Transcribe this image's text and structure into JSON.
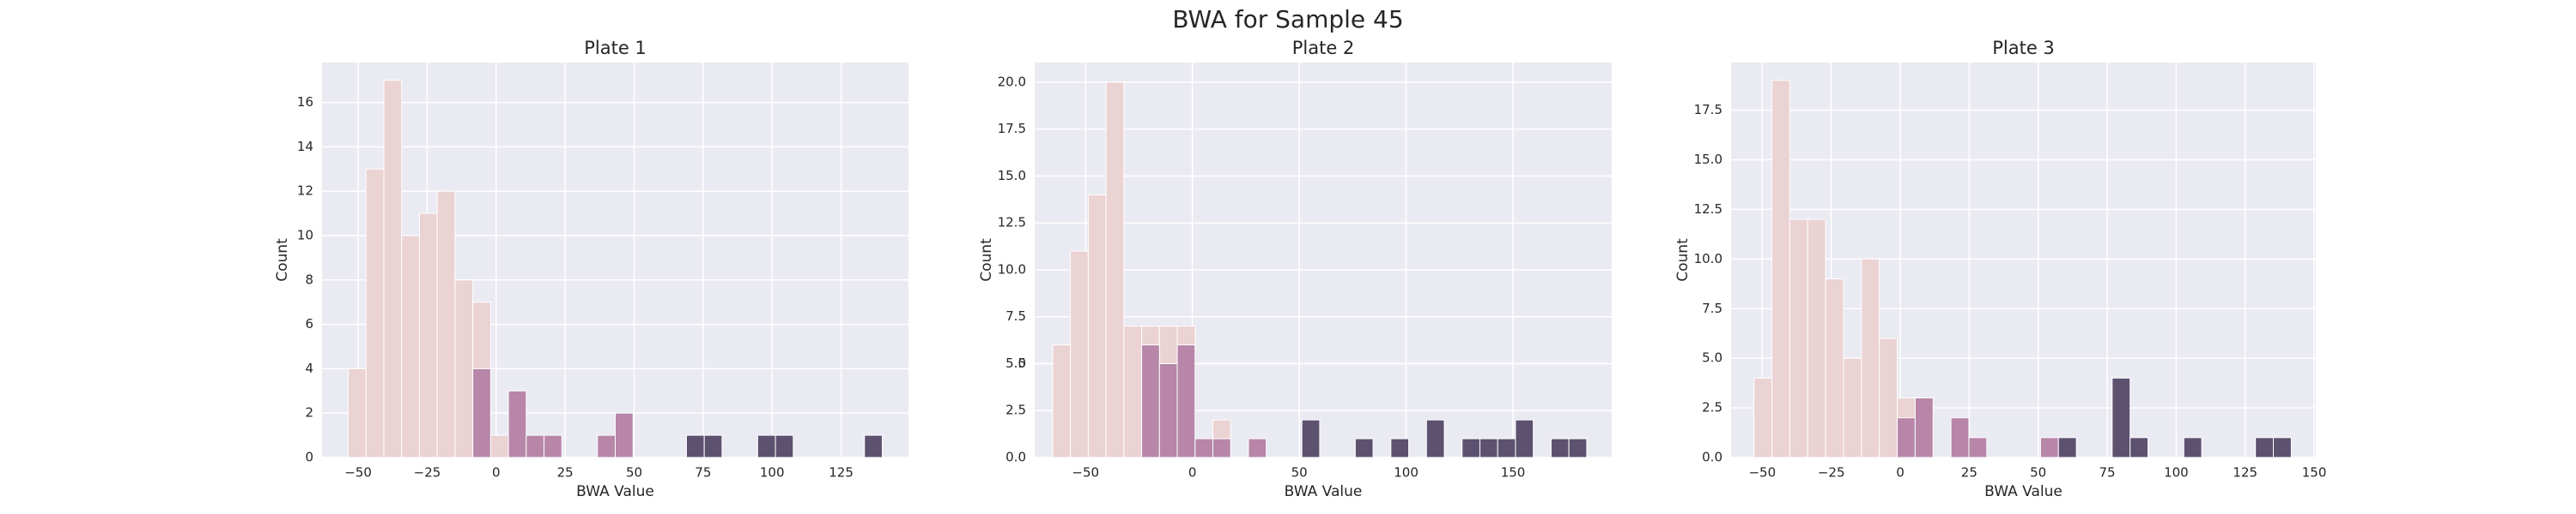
{
  "title": "BWA for Sample 45",
  "chart_data": [
    {
      "type": "histogram",
      "title": "Plate 1",
      "xlabel": "BWA Value",
      "ylabel": "Count",
      "grid": true,
      "bins": [
        -53.6,
        -47.15,
        -40.7,
        -34.25,
        -27.8,
        -21.35,
        -14.9,
        -8.45,
        -2.0,
        4.45,
        10.9,
        17.35,
        23.8,
        30.25,
        36.7,
        43.15,
        49.6,
        56.05,
        62.5,
        68.95,
        75.4,
        81.85,
        88.3,
        94.75,
        101.2,
        107.65,
        114.1,
        120.55,
        127.0,
        133.45,
        139.9
      ],
      "series": [
        {
          "color": "#ebd2d3",
          "values": [
            4,
            13,
            17,
            10,
            11,
            12,
            8,
            7,
            1,
            0,
            0,
            0,
            0,
            0,
            0,
            0,
            0,
            0,
            0,
            0,
            0,
            0,
            0,
            0,
            0,
            0,
            0,
            0,
            0,
            0
          ]
        },
        {
          "color": "#b786a8",
          "values": [
            0,
            0,
            0,
            0,
            0,
            0,
            0,
            4,
            0,
            3,
            1,
            1,
            0,
            0,
            1,
            2,
            0,
            0,
            0,
            0,
            0,
            0,
            0,
            0,
            0,
            0,
            0,
            0,
            0,
            0
          ]
        },
        {
          "color": "#5d5170",
          "values": [
            0,
            0,
            0,
            0,
            0,
            0,
            0,
            0,
            0,
            0,
            0,
            0,
            0,
            0,
            0,
            0,
            0,
            0,
            0,
            1,
            1,
            0,
            0,
            1,
            1,
            0,
            0,
            0,
            0,
            1
          ]
        }
      ],
      "xlim": [
        -63.1,
        149.4
      ],
      "ylim": [
        0,
        17.8
      ],
      "xticks": [
        {
          "value": -50,
          "label": "−50"
        },
        {
          "value": -25,
          "label": "−25"
        },
        0,
        25,
        50,
        75,
        100,
        125
      ],
      "yticks": [
        0,
        2,
        4,
        6,
        8,
        10,
        12,
        14,
        16
      ]
    },
    {
      "type": "histogram",
      "title": "Plate 2",
      "xlabel": "BWA Value",
      "ylabel": "Count",
      "grid": true,
      "bins": [
        -65.4,
        -57.07,
        -48.74,
        -40.41,
        -32.08,
        -23.75,
        -15.42,
        -7.09,
        1.24,
        9.57,
        17.9,
        26.23,
        34.56,
        42.89,
        51.22,
        59.55,
        67.88,
        76.21,
        84.54,
        92.87,
        101.2,
        109.53,
        117.86,
        126.19,
        134.52,
        142.85,
        151.18,
        159.51,
        167.84,
        176.17,
        184.5
      ],
      "series": [
        {
          "color": "#ebd2d3",
          "values": [
            6,
            11,
            14,
            20,
            7,
            7,
            7,
            7,
            0,
            2,
            0,
            0,
            0,
            0,
            0,
            0,
            0,
            0,
            0,
            0,
            0,
            0,
            0,
            0,
            0,
            0,
            0,
            0,
            0,
            0
          ]
        },
        {
          "color": "#b786a8",
          "values": [
            0,
            0,
            0,
            0,
            0,
            6,
            5,
            6,
            1,
            1,
            0,
            1,
            0,
            0,
            0,
            0,
            0,
            0,
            0,
            0,
            0,
            0,
            0,
            0,
            0,
            0,
            0,
            0,
            0,
            0
          ]
        },
        {
          "color": "#5d5170",
          "values": [
            0,
            0,
            0,
            0,
            0,
            0,
            0,
            0,
            0,
            0,
            0,
            0,
            0,
            0,
            2,
            0,
            0,
            1,
            0,
            1,
            0,
            2,
            0,
            1,
            1,
            1,
            2,
            0,
            1,
            1
          ]
        }
      ],
      "xlim": [
        -73.8,
        196.2
      ],
      "ylim": [
        0,
        21.05
      ],
      "xticks": [
        {
          "value": -50,
          "label": "−50"
        },
        0,
        50,
        100,
        150
      ],
      "yticks": [
        {
          "value": 0,
          "label": "0.0"
        },
        2.5,
        5,
        {
          "value": 5,
          "label": "5.0"
        },
        7.5,
        {
          "value": 10,
          "label": "10.0"
        },
        12.5,
        {
          "value": 15,
          "label": "15.0"
        },
        17.5,
        {
          "value": 20,
          "label": "20.0"
        }
      ]
    },
    {
      "type": "histogram",
      "title": "Plate 3",
      "xlabel": "BWA Value",
      "ylabel": "Count",
      "grid": true,
      "bins": [
        -53.0,
        -46.51,
        -40.02,
        -33.53,
        -27.04,
        -20.55,
        -14.06,
        -7.57,
        -1.08,
        5.41,
        11.9,
        18.39,
        24.88,
        31.37,
        37.86,
        44.35,
        50.84,
        57.33,
        63.82,
        70.31,
        76.8,
        83.29,
        89.78,
        96.27,
        102.76,
        109.25,
        115.74,
        122.23,
        128.72,
        135.21,
        141.7
      ],
      "series": [
        {
          "color": "#ebd2d3",
          "values": [
            4,
            19,
            12,
            12,
            9,
            5,
            10,
            6,
            3,
            0,
            0,
            0,
            0,
            0,
            0,
            0,
            0,
            0,
            0,
            0,
            0,
            0,
            0,
            0,
            0,
            0,
            0,
            0,
            0,
            0
          ]
        },
        {
          "color": "#b786a8",
          "values": [
            0,
            0,
            0,
            0,
            0,
            0,
            0,
            0,
            2,
            3,
            0,
            2,
            1,
            0,
            0,
            0,
            1,
            0,
            0,
            0,
            0,
            0,
            0,
            0,
            0,
            0,
            0,
            0,
            0,
            0
          ]
        },
        {
          "color": "#5d5170",
          "values": [
            0,
            0,
            0,
            0,
            0,
            0,
            0,
            0,
            0,
            0,
            0,
            0,
            0,
            0,
            0,
            0,
            0,
            1,
            0,
            0,
            4,
            1,
            0,
            0,
            1,
            0,
            0,
            0,
            1,
            1
          ]
        }
      ],
      "xlim": [
        -61.3,
        150.6
      ],
      "ylim": [
        0,
        19.9
      ],
      "xticks": [
        {
          "value": -50,
          "label": "−50"
        },
        {
          "value": -25,
          "label": "−25"
        },
        0,
        25,
        50,
        75,
        100,
        125,
        150
      ],
      "yticks": [
        {
          "value": 0,
          "label": "0.0"
        },
        2.5,
        {
          "value": 5,
          "label": "5.0"
        },
        7.5,
        {
          "value": 10,
          "label": "10.0"
        },
        12.5,
        {
          "value": 15,
          "label": "15.0"
        },
        17.5
      ]
    }
  ]
}
